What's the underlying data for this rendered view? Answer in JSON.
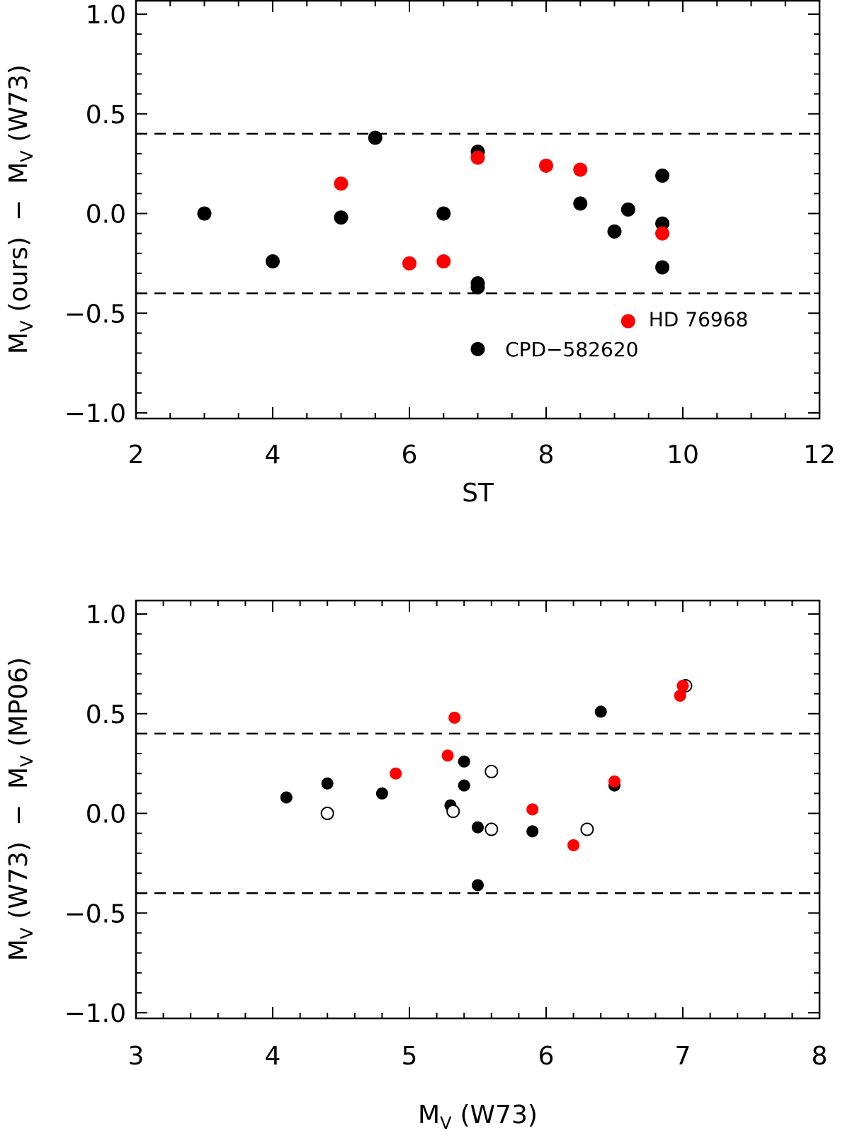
{
  "chart_data": [
    {
      "type": "scatter",
      "xlabel": "ST",
      "ylabel": "M(ours) − M(W73)",
      "ylabel_parts": {
        "m1": "M",
        "sub1": "V",
        "paren1": "(ours)",
        "minus": "−",
        "m2": "M",
        "sub2": "V",
        "paren2": "(W73)"
      },
      "xlim": [
        2,
        12
      ],
      "ylim": [
        -1.0,
        1.0
      ],
      "xticks": [
        "2",
        "4",
        "6",
        "8",
        "10",
        "12"
      ],
      "xtick_values": [
        2,
        4,
        6,
        8,
        10,
        12
      ],
      "yticks": [
        "−1.0",
        "−0.5",
        "0.0",
        "0.5",
        "1.0"
      ],
      "ytick_values": [
        -1.0,
        -0.5,
        0.0,
        0.5,
        1.0
      ],
      "hlines": [
        0.4,
        -0.4
      ],
      "series": [
        {
          "name": "black",
          "color": "#000000",
          "filled": true,
          "points": [
            [
              3.0,
              0.0
            ],
            [
              4.0,
              -0.24
            ],
            [
              5.0,
              -0.02
            ],
            [
              5.5,
              0.38
            ],
            [
              6.5,
              0.0
            ],
            [
              7.0,
              0.31
            ],
            [
              7.0,
              -0.35
            ],
            [
              7.0,
              -0.37
            ],
            [
              7.0,
              -0.68
            ],
            [
              8.5,
              0.05
            ],
            [
              9.0,
              -0.09
            ],
            [
              9.2,
              0.02
            ],
            [
              9.7,
              0.19
            ],
            [
              9.7,
              -0.05
            ],
            [
              9.7,
              -0.27
            ]
          ]
        },
        {
          "name": "red",
          "color": "#ff0000",
          "filled": true,
          "points": [
            [
              5.0,
              0.15
            ],
            [
              6.0,
              -0.25
            ],
            [
              6.5,
              -0.24
            ],
            [
              7.0,
              0.28
            ],
            [
              8.0,
              0.24
            ],
            [
              8.5,
              0.22
            ],
            [
              9.7,
              -0.1
            ],
            [
              9.2,
              -0.54
            ]
          ]
        }
      ],
      "annotations": [
        {
          "text": "HD 76968",
          "x": 9.5,
          "y": -0.53
        },
        {
          "text": "CPD−582620",
          "x": 7.4,
          "y": -0.68
        }
      ]
    },
    {
      "type": "scatter",
      "xlabel": "M(W73)",
      "xlabel_parts": {
        "m": "M",
        "sub": "V",
        "paren": "(W73)"
      },
      "ylabel": "M(W73) − M(MP06)",
      "ylabel_parts": {
        "m1": "M",
        "sub1": "V",
        "paren1": "(W73)",
        "minus": "−",
        "m2": "M",
        "sub2": "V",
        "paren2": "(MP06)"
      },
      "xlim": [
        3,
        8
      ],
      "ylim": [
        -1.0,
        1.0
      ],
      "xticks": [
        "3",
        "4",
        "5",
        "6",
        "7",
        "8"
      ],
      "xtick_values": [
        3,
        4,
        5,
        6,
        7,
        8
      ],
      "yticks": [
        "−1.0",
        "−0.5",
        "0.0",
        "0.5",
        "1.0"
      ],
      "ytick_values": [
        -1.0,
        -0.5,
        0.0,
        0.5,
        1.0
      ],
      "hlines": [
        0.4,
        -0.4
      ],
      "series": [
        {
          "name": "black-filled",
          "color": "#000000",
          "filled": true,
          "points": [
            [
              4.1,
              0.08
            ],
            [
              4.4,
              0.15
            ],
            [
              4.8,
              0.1
            ],
            [
              5.3,
              0.04
            ],
            [
              5.4,
              0.26
            ],
            [
              5.4,
              0.14
            ],
            [
              5.5,
              -0.07
            ],
            [
              5.5,
              -0.36
            ],
            [
              5.9,
              -0.09
            ],
            [
              6.4,
              0.51
            ],
            [
              6.5,
              0.14
            ]
          ]
        },
        {
          "name": "black-open",
          "color": "#000000",
          "filled": false,
          "points": [
            [
              4.4,
              0.0
            ],
            [
              5.32,
              0.01
            ],
            [
              5.6,
              0.21
            ],
            [
              5.6,
              -0.08
            ],
            [
              6.3,
              -0.08
            ],
            [
              7.02,
              0.64
            ]
          ]
        },
        {
          "name": "red",
          "color": "#ff0000",
          "filled": true,
          "points": [
            [
              4.9,
              0.2
            ],
            [
              5.28,
              0.29
            ],
            [
              5.33,
              0.48
            ],
            [
              5.9,
              0.02
            ],
            [
              6.2,
              -0.16
            ],
            [
              6.5,
              0.16
            ],
            [
              6.98,
              0.59
            ],
            [
              7.0,
              0.64
            ]
          ]
        }
      ]
    }
  ]
}
